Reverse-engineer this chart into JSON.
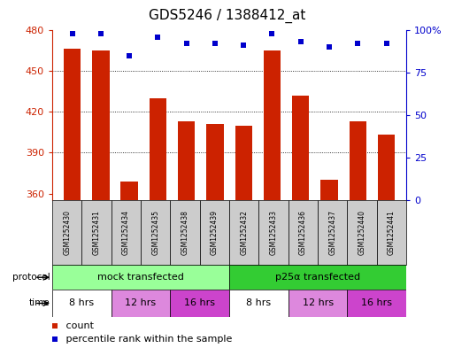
{
  "title": "GDS5246 / 1388412_at",
  "samples": [
    "GSM1252430",
    "GSM1252431",
    "GSM1252434",
    "GSM1252435",
    "GSM1252438",
    "GSM1252439",
    "GSM1252432",
    "GSM1252433",
    "GSM1252436",
    "GSM1252437",
    "GSM1252440",
    "GSM1252441"
  ],
  "bar_values": [
    466,
    465,
    369,
    430,
    413,
    411,
    410,
    465,
    432,
    370,
    413,
    403
  ],
  "percentile_values": [
    98,
    98,
    85,
    96,
    92,
    92,
    91,
    98,
    93,
    90,
    92,
    92
  ],
  "ylim_left": [
    355,
    480
  ],
  "ylim_right": [
    0,
    100
  ],
  "yticks_left": [
    360,
    390,
    420,
    450,
    480
  ],
  "yticks_right": [
    0,
    25,
    50,
    75,
    100
  ],
  "bar_color": "#cc2200",
  "dot_color": "#0000cc",
  "background_color": "#ffffff",
  "protocol_labels": [
    "mock transfected",
    "p25α transfected"
  ],
  "protocol_colors": [
    "#99ff99",
    "#33cc33"
  ],
  "time_labels": [
    "8 hrs",
    "12 hrs",
    "16 hrs",
    "8 hrs",
    "12 hrs",
    "16 hrs"
  ],
  "time_colors": [
    "#ffffff",
    "#dd88dd",
    "#cc44cc",
    "#ffffff",
    "#dd88dd",
    "#cc44cc"
  ],
  "legend_count_color": "#cc2200",
  "legend_dot_color": "#0000cc",
  "axis_label_color_left": "#cc2200",
  "axis_label_color_right": "#0000cc",
  "sample_box_color": "#cccccc",
  "title_fontsize": 11,
  "tick_fontsize": 8,
  "label_fontsize": 8,
  "legend_fontsize": 8
}
